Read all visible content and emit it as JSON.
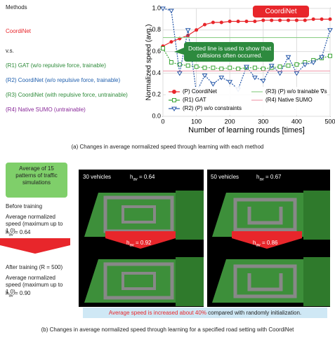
{
  "methods": {
    "title": "Methods",
    "coordinet": "CoordiNet",
    "vs": "v.s.",
    "r1": "(R1) GAT (w/o repulsive force, trainable)",
    "r2": "(R2) CoordiNet (w/o repulsive force, trainable)",
    "r3": "(R3) CoordiNet (with repulsive force, untrainable)",
    "r4": "(R4) Native SUMO (untrainable)"
  },
  "chart_data": {
    "type": "line",
    "xlabel": "Number of learning rounds [times]",
    "ylabel": "Normalized speed (avg.)",
    "x": [
      0,
      25,
      50,
      75,
      100,
      125,
      150,
      175,
      200,
      225,
      250,
      275,
      300,
      325,
      350,
      375,
      400,
      425,
      450,
      475,
      500
    ],
    "xlim": [
      0,
      500
    ],
    "ylim": [
      0,
      1.0
    ],
    "xticks": [
      0,
      100,
      200,
      300,
      400,
      500
    ],
    "yticks": [
      {
        "value": 0,
        "label": "0.0"
      },
      {
        "value": 0.2,
        "label": "0.2"
      },
      {
        "value": 0.4,
        "label": "0.4"
      },
      {
        "value": 0.6,
        "label": "0.6"
      },
      {
        "value": 0.8,
        "label": "0.8"
      },
      {
        "value": 1.0,
        "label": "1.0"
      }
    ],
    "grid": true,
    "series": [
      {
        "name": "(P) CoordiNet",
        "color": "#e8262b",
        "marker": "circle",
        "values": [
          0.65,
          0.69,
          0.72,
          0.75,
          0.8,
          0.85,
          0.87,
          0.87,
          0.88,
          0.88,
          0.88,
          0.88,
          0.89,
          0.89,
          0.89,
          0.89,
          0.89,
          0.89,
          0.9,
          0.9,
          0.9
        ]
      },
      {
        "name": "(R1) GAT",
        "color": "#3aa535",
        "marker": "square",
        "dotted": true,
        "values": [
          0.63,
          0.5,
          0.48,
          0.47,
          0.46,
          0.45,
          0.45,
          0.44,
          0.45,
          0.44,
          0.45,
          0.45,
          0.44,
          0.45,
          0.46,
          0.47,
          0.48,
          0.5,
          0.52,
          0.54,
          0.56
        ]
      },
      {
        "name": "(R2) (P) w/o constraints",
        "color": "#2456a8",
        "marker": "triangle",
        "dotted": true,
        "values": [
          1.0,
          0.98,
          0.4,
          0.8,
          0.22,
          0.38,
          0.3,
          0.36,
          0.32,
          0.25,
          0.46,
          0.36,
          0.33,
          0.47,
          0.4,
          0.55,
          0.4,
          0.48,
          0.5,
          0.55,
          0.8
        ]
      },
      {
        "name": "(R3) (P) w/o trainable ∇s",
        "color": "#8fd08a",
        "marker": "none",
        "values": [
          0.73,
          0.73,
          0.73,
          0.73,
          0.73,
          0.73,
          0.73,
          0.73,
          0.73,
          0.73,
          0.73,
          0.73,
          0.73,
          0.73,
          0.73,
          0.73,
          0.73,
          0.73,
          0.73,
          0.73,
          0.73
        ]
      },
      {
        "name": "(R4) Native SUMO",
        "color": "#f0a0b0",
        "marker": "none",
        "values": [
          0.42,
          0.42,
          0.42,
          0.42,
          0.42,
          0.42,
          0.42,
          0.42,
          0.42,
          0.42,
          0.42,
          0.42,
          0.42,
          0.42,
          0.42,
          0.42,
          0.42,
          0.42,
          0.42,
          0.42,
          0.42
        ]
      }
    ],
    "annotations": [
      "CoordiNet",
      "Dotted line is used to show that collisions often occurred."
    ]
  },
  "caption_a": "(a) Changes in average normalized speed through learning with each method",
  "bottom": {
    "callout": "Average of 15 patterns of traffic simulations",
    "before": "Before training",
    "avg_label_1": "Average normalized speed (maximum up to 1.0)",
    "before_h": {
      "symbol": "h",
      "sub": "av",
      "text": " = 0.64"
    },
    "after": "After training (R = 500)",
    "avg_label_2": "Average normalized speed (maximum up to 1.0)",
    "after_h": {
      "symbol": "h",
      "sub": "av",
      "text": " = 0.90"
    },
    "panel_30": {
      "title": "30 vehicles",
      "symbol": "h",
      "sub": "av",
      "before": " = 0.64",
      "symbol2": "h",
      "sub2": "av",
      "after": " = 0.92"
    },
    "panel_50": {
      "title": "50 vehicles",
      "symbol": "h",
      "sub": "av",
      "before": " = 0.67",
      "symbol2": "h",
      "sub2": "av",
      "after": " = 0.86"
    },
    "highlight_red": "Average speed is increased about 40%",
    "highlight_rest": " compared with randomly initialization."
  },
  "caption_b": "(b) Changes in average normalized speed through learning for a specified road setting with CoordiNet"
}
